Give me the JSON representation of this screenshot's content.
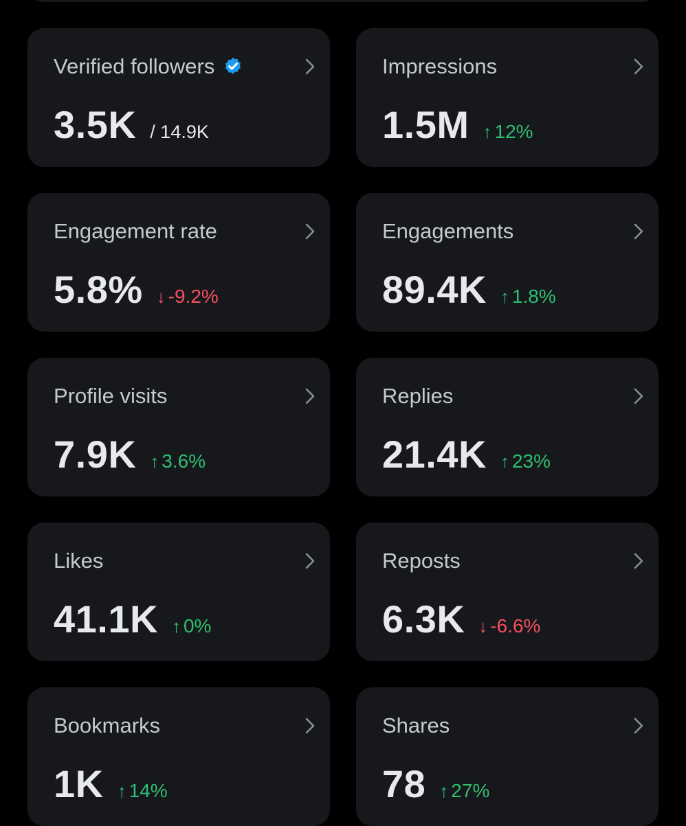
{
  "colors": {
    "background": "#000000",
    "card": "#16181c",
    "title": "#c6c9cd",
    "value": "#e7e9ea",
    "up": "#2fbf71",
    "down": "#f4505e",
    "verified": "#1d9bf0"
  },
  "cards": [
    {
      "title": "Verified followers",
      "value": "3.5K",
      "secondary": "/ 14.9K"
    },
    {
      "title": "Impressions",
      "value": "1.5M",
      "change": "12%",
      "arrow": "↑"
    },
    {
      "title": "Engagement rate",
      "value": "5.8%",
      "change": "-9.2%",
      "arrow": "↓"
    },
    {
      "title": "Engagements",
      "value": "89.4K",
      "change": "1.8%",
      "arrow": "↑"
    },
    {
      "title": "Profile visits",
      "value": "7.9K",
      "change": "3.6%",
      "arrow": "↑"
    },
    {
      "title": "Replies",
      "value": "21.4K",
      "change": "23%",
      "arrow": "↑"
    },
    {
      "title": "Likes",
      "value": "41.1K",
      "change": "0%",
      "arrow": "↑"
    },
    {
      "title": "Reposts",
      "value": "6.3K",
      "change": "-6.6%",
      "arrow": "↓"
    },
    {
      "title": "Bookmarks",
      "value": "1K",
      "change": "14%",
      "arrow": "↑"
    },
    {
      "title": "Shares",
      "value": "78",
      "change": "27%",
      "arrow": "↑"
    }
  ]
}
